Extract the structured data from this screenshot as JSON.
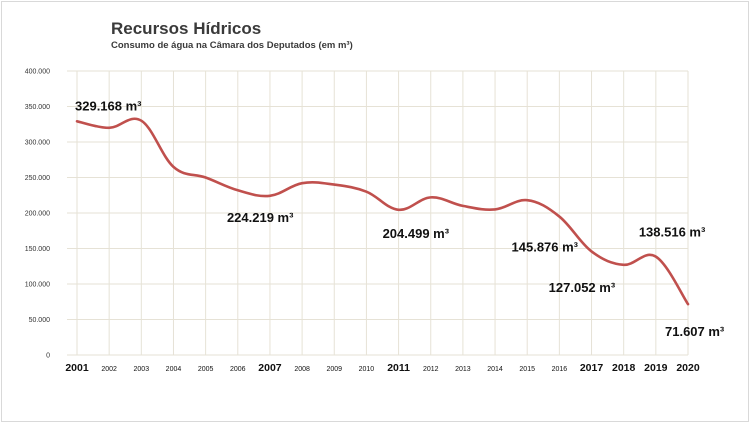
{
  "chart_data": {
    "type": "line",
    "title": "Recursos Hídricos",
    "subtitle": "Consumo de água na Câmara dos Deputados (em m³)",
    "xlabel": "",
    "ylabel": "",
    "ylim": [
      0,
      400000
    ],
    "grid": true,
    "line_color": "#c0504d",
    "categories": [
      "2001",
      "2002",
      "2003",
      "2004",
      "2005",
      "2006",
      "2007",
      "2008",
      "2009",
      "2010",
      "2011",
      "2012",
      "2013",
      "2014",
      "2015",
      "2016",
      "2017",
      "2018",
      "2019",
      "2020"
    ],
    "emphasized_categories": [
      "2001",
      "2007",
      "2011",
      "2017",
      "2018",
      "2019",
      "2020"
    ],
    "series": [
      {
        "name": "Consumo de água (m³)",
        "values": [
          329168,
          320000,
          330000,
          265000,
          250000,
          232000,
          224219,
          242000,
          240000,
          230000,
          204499,
          222000,
          210000,
          205000,
          218000,
          195000,
          145876,
          127052,
          138516,
          71607
        ]
      }
    ],
    "yticks": [
      {
        "value": 400000,
        "label": "400.000"
      },
      {
        "value": 350000,
        "label": "350.000"
      },
      {
        "value": 300000,
        "label": "300.000"
      },
      {
        "value": 250000,
        "label": "250.000"
      },
      {
        "value": 200000,
        "label": "200.000"
      },
      {
        "value": 150000,
        "label": "150.000"
      },
      {
        "value": 100000,
        "label": "100.000"
      },
      {
        "value": 50000,
        "label": "50.000"
      },
      {
        "value": 0,
        "label": "0"
      }
    ],
    "annotations": [
      {
        "category": "2001",
        "text": "329.168 m³"
      },
      {
        "category": "2007",
        "text": "224.219 m³"
      },
      {
        "category": "2011",
        "text": "204.499 m³"
      },
      {
        "category": "2017",
        "text": "145.876 m³"
      },
      {
        "category": "2018",
        "text": "127.052 m³"
      },
      {
        "category": "2019",
        "text": "138.516 m³"
      },
      {
        "category": "2020",
        "text": "71.607 m³"
      }
    ]
  }
}
